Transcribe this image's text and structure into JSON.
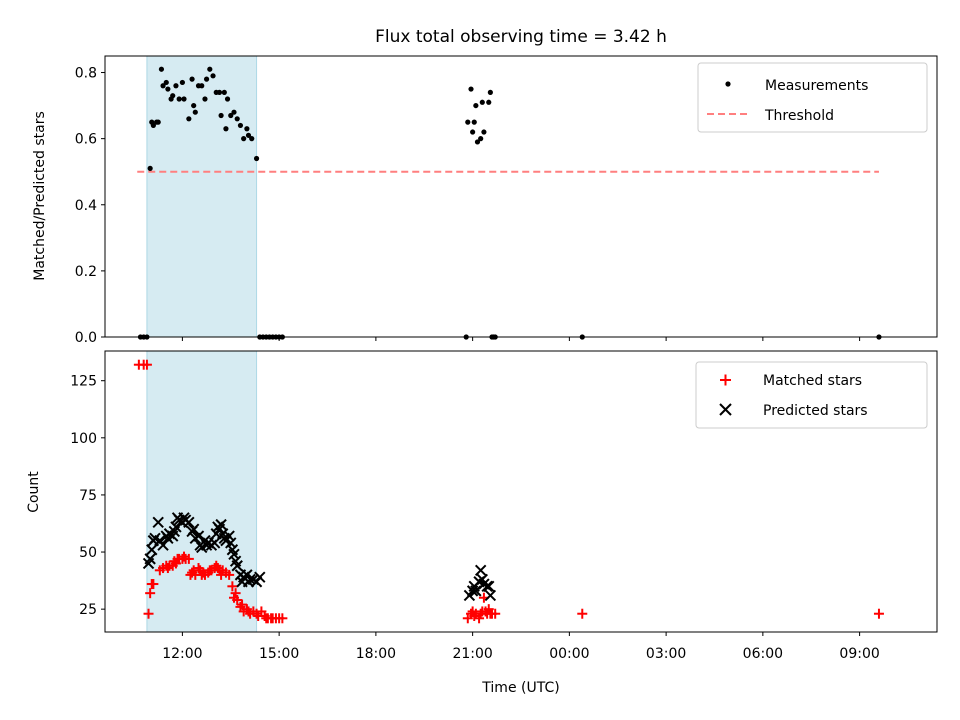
{
  "title": "Flux total observing time = 3.42 h",
  "colors": {
    "measurement": "#000000",
    "threshold": "#ff7f7f",
    "matched": "#ff0000",
    "predicted": "#000000",
    "shade": "#add8e6"
  },
  "time_axis": {
    "label": "Time (UTC)",
    "tick_labels": [
      "12:00",
      "15:00",
      "18:00",
      "21:00",
      "00:00",
      "03:00",
      "06:00",
      "09:00"
    ],
    "tick_hours": [
      12,
      15,
      18,
      21,
      24,
      27,
      30,
      33
    ],
    "xlim_hours": [
      9.6,
      35.4
    ]
  },
  "chart_data": [
    {
      "type": "scatter",
      "panel": "top",
      "ylabel": "Matched/Predicted stars",
      "ylim": [
        0,
        0.85
      ],
      "yticks": [
        0.0,
        0.2,
        0.4,
        0.6,
        0.8
      ],
      "ytick_labels": [
        "0.0",
        "0.2",
        "0.4",
        "0.6",
        "0.8"
      ],
      "legend_position": "upper right",
      "legend": [
        "Measurements",
        "Threshold"
      ],
      "shaded_interval_hours": [
        10.9,
        14.3
      ],
      "threshold": {
        "name": "Threshold",
        "y": 0.5,
        "x_range_hours": [
          10.6,
          33.6
        ],
        "style": "dashed"
      },
      "series": [
        {
          "name": "Measurements",
          "marker": "dot",
          "points": [
            [
              10.7,
              0.0
            ],
            [
              10.8,
              0.0
            ],
            [
              10.9,
              0.0
            ],
            [
              11.0,
              0.51
            ],
            [
              11.05,
              0.65
            ],
            [
              11.1,
              0.64
            ],
            [
              11.2,
              0.65
            ],
            [
              11.25,
              0.65
            ],
            [
              11.35,
              0.81
            ],
            [
              11.4,
              0.76
            ],
            [
              11.5,
              0.77
            ],
            [
              11.55,
              0.75
            ],
            [
              11.65,
              0.72
            ],
            [
              11.7,
              0.73
            ],
            [
              11.8,
              0.76
            ],
            [
              11.9,
              0.72
            ],
            [
              12.0,
              0.77
            ],
            [
              12.05,
              0.72
            ],
            [
              12.2,
              0.66
            ],
            [
              12.3,
              0.78
            ],
            [
              12.35,
              0.7
            ],
            [
              12.4,
              0.68
            ],
            [
              12.5,
              0.76
            ],
            [
              12.6,
              0.76
            ],
            [
              12.7,
              0.72
            ],
            [
              12.75,
              0.78
            ],
            [
              12.85,
              0.81
            ],
            [
              12.95,
              0.79
            ],
            [
              13.05,
              0.74
            ],
            [
              13.15,
              0.74
            ],
            [
              13.2,
              0.67
            ],
            [
              13.3,
              0.74
            ],
            [
              13.35,
              0.63
            ],
            [
              13.4,
              0.72
            ],
            [
              13.5,
              0.67
            ],
            [
              13.6,
              0.68
            ],
            [
              13.7,
              0.66
            ],
            [
              13.8,
              0.64
            ],
            [
              13.9,
              0.6
            ],
            [
              14.0,
              0.63
            ],
            [
              14.05,
              0.61
            ],
            [
              14.15,
              0.6
            ],
            [
              14.3,
              0.54
            ],
            [
              14.4,
              0.0
            ],
            [
              14.5,
              0.0
            ],
            [
              14.6,
              0.0
            ],
            [
              14.7,
              0.0
            ],
            [
              14.8,
              0.0
            ],
            [
              14.9,
              0.0
            ],
            [
              15.0,
              0.0
            ],
            [
              15.1,
              0.0
            ],
            [
              20.8,
              0.0
            ],
            [
              20.85,
              0.65
            ],
            [
              20.95,
              0.75
            ],
            [
              21.0,
              0.62
            ],
            [
              21.05,
              0.65
            ],
            [
              21.1,
              0.7
            ],
            [
              21.15,
              0.59
            ],
            [
              21.25,
              0.6
            ],
            [
              21.3,
              0.71
            ],
            [
              21.35,
              0.62
            ],
            [
              21.5,
              0.71
            ],
            [
              21.55,
              0.74
            ],
            [
              21.6,
              0.0
            ],
            [
              21.65,
              0.0
            ],
            [
              21.7,
              0.0
            ],
            [
              24.4,
              0.0
            ],
            [
              33.6,
              0.0
            ]
          ]
        }
      ]
    },
    {
      "type": "scatter",
      "panel": "bottom",
      "ylabel": "Count",
      "xlabel": "Time (UTC)",
      "ylim": [
        15,
        138
      ],
      "yticks": [
        25,
        50,
        75,
        100,
        125
      ],
      "ytick_labels": [
        "25",
        "50",
        "75",
        "100",
        "125"
      ],
      "legend_position": "upper right",
      "legend": [
        "Matched stars",
        "Predicted stars"
      ],
      "shaded_interval_hours": [
        10.9,
        14.3
      ],
      "series": [
        {
          "name": "Matched stars",
          "marker": "plus",
          "points": [
            [
              10.65,
              132
            ],
            [
              10.8,
              132
            ],
            [
              10.9,
              132
            ],
            [
              10.95,
              23
            ],
            [
              11.0,
              32
            ],
            [
              11.05,
              36
            ],
            [
              11.1,
              36
            ],
            [
              11.3,
              42
            ],
            [
              11.4,
              43
            ],
            [
              11.5,
              44
            ],
            [
              11.55,
              43
            ],
            [
              11.6,
              44
            ],
            [
              11.7,
              44
            ],
            [
              11.75,
              46
            ],
            [
              11.8,
              45
            ],
            [
              11.85,
              47
            ],
            [
              11.9,
              47
            ],
            [
              12.0,
              47
            ],
            [
              12.05,
              48
            ],
            [
              12.1,
              47
            ],
            [
              12.2,
              47
            ],
            [
              12.25,
              40
            ],
            [
              12.3,
              41
            ],
            [
              12.35,
              42
            ],
            [
              12.4,
              40
            ],
            [
              12.5,
              43
            ],
            [
              12.55,
              42
            ],
            [
              12.6,
              40
            ],
            [
              12.65,
              41
            ],
            [
              12.7,
              40
            ],
            [
              12.8,
              41
            ],
            [
              12.85,
              42
            ],
            [
              12.9,
              42
            ],
            [
              13.0,
              43
            ],
            [
              13.05,
              44
            ],
            [
              13.1,
              43
            ],
            [
              13.15,
              42
            ],
            [
              13.2,
              40
            ],
            [
              13.25,
              42
            ],
            [
              13.35,
              41
            ],
            [
              13.45,
              40
            ],
            [
              13.55,
              35
            ],
            [
              13.6,
              30
            ],
            [
              13.65,
              32
            ],
            [
              13.7,
              29
            ],
            [
              13.8,
              26
            ],
            [
              13.85,
              27
            ],
            [
              13.9,
              24
            ],
            [
              14.0,
              25
            ],
            [
              14.05,
              24
            ],
            [
              14.1,
              23
            ],
            [
              14.2,
              24
            ],
            [
              14.3,
              23
            ],
            [
              14.35,
              22
            ],
            [
              14.45,
              24
            ],
            [
              14.55,
              22
            ],
            [
              14.6,
              21
            ],
            [
              14.65,
              21
            ],
            [
              14.75,
              21
            ],
            [
              14.8,
              21
            ],
            [
              14.9,
              21
            ],
            [
              15.0,
              21
            ],
            [
              15.1,
              21
            ],
            [
              20.85,
              21
            ],
            [
              20.95,
              23
            ],
            [
              21.0,
              24
            ],
            [
              21.05,
              22
            ],
            [
              21.1,
              23
            ],
            [
              21.2,
              21
            ],
            [
              21.25,
              23
            ],
            [
              21.3,
              24
            ],
            [
              21.35,
              30
            ],
            [
              21.4,
              24
            ],
            [
              21.45,
              23
            ],
            [
              21.5,
              25
            ],
            [
              21.55,
              23
            ],
            [
              21.6,
              23
            ],
            [
              21.7,
              23
            ],
            [
              24.4,
              23
            ],
            [
              33.6,
              23
            ]
          ]
        },
        {
          "name": "Predicted stars",
          "marker": "x",
          "points": [
            [
              10.95,
              45
            ],
            [
              11.0,
              47
            ],
            [
              11.05,
              51
            ],
            [
              11.1,
              55
            ],
            [
              11.15,
              56
            ],
            [
              11.25,
              63
            ],
            [
              11.3,
              55
            ],
            [
              11.4,
              53
            ],
            [
              11.5,
              57
            ],
            [
              11.55,
              56
            ],
            [
              11.6,
              58
            ],
            [
              11.7,
              57
            ],
            [
              11.75,
              59
            ],
            [
              11.8,
              61
            ],
            [
              11.85,
              65
            ],
            [
              11.9,
              64
            ],
            [
              12.0,
              63
            ],
            [
              12.05,
              65
            ],
            [
              12.1,
              64
            ],
            [
              12.2,
              63
            ],
            [
              12.3,
              59
            ],
            [
              12.35,
              60
            ],
            [
              12.4,
              56
            ],
            [
              12.5,
              57
            ],
            [
              12.55,
              53
            ],
            [
              12.6,
              52
            ],
            [
              12.7,
              55
            ],
            [
              12.75,
              53
            ],
            [
              12.8,
              54
            ],
            [
              12.9,
              53
            ],
            [
              13.0,
              54
            ],
            [
              13.05,
              58
            ],
            [
              13.1,
              61
            ],
            [
              13.15,
              60
            ],
            [
              13.2,
              62
            ],
            [
              13.25,
              58
            ],
            [
              13.3,
              56
            ],
            [
              13.35,
              55
            ],
            [
              13.45,
              57
            ],
            [
              13.5,
              54
            ],
            [
              13.55,
              51
            ],
            [
              13.6,
              49
            ],
            [
              13.65,
              46
            ],
            [
              13.7,
              44
            ],
            [
              13.8,
              40
            ],
            [
              13.85,
              37
            ],
            [
              13.9,
              39
            ],
            [
              14.0,
              40
            ],
            [
              14.05,
              37
            ],
            [
              14.1,
              38
            ],
            [
              14.2,
              38
            ],
            [
              14.3,
              37
            ],
            [
              14.4,
              39
            ],
            [
              20.9,
              31
            ],
            [
              21.0,
              33
            ],
            [
              21.05,
              35
            ],
            [
              21.1,
              33
            ],
            [
              21.2,
              37
            ],
            [
              21.25,
              42
            ],
            [
              21.3,
              38
            ],
            [
              21.35,
              36
            ],
            [
              21.45,
              35
            ],
            [
              21.5,
              35
            ],
            [
              21.55,
              31
            ]
          ]
        }
      ]
    }
  ]
}
